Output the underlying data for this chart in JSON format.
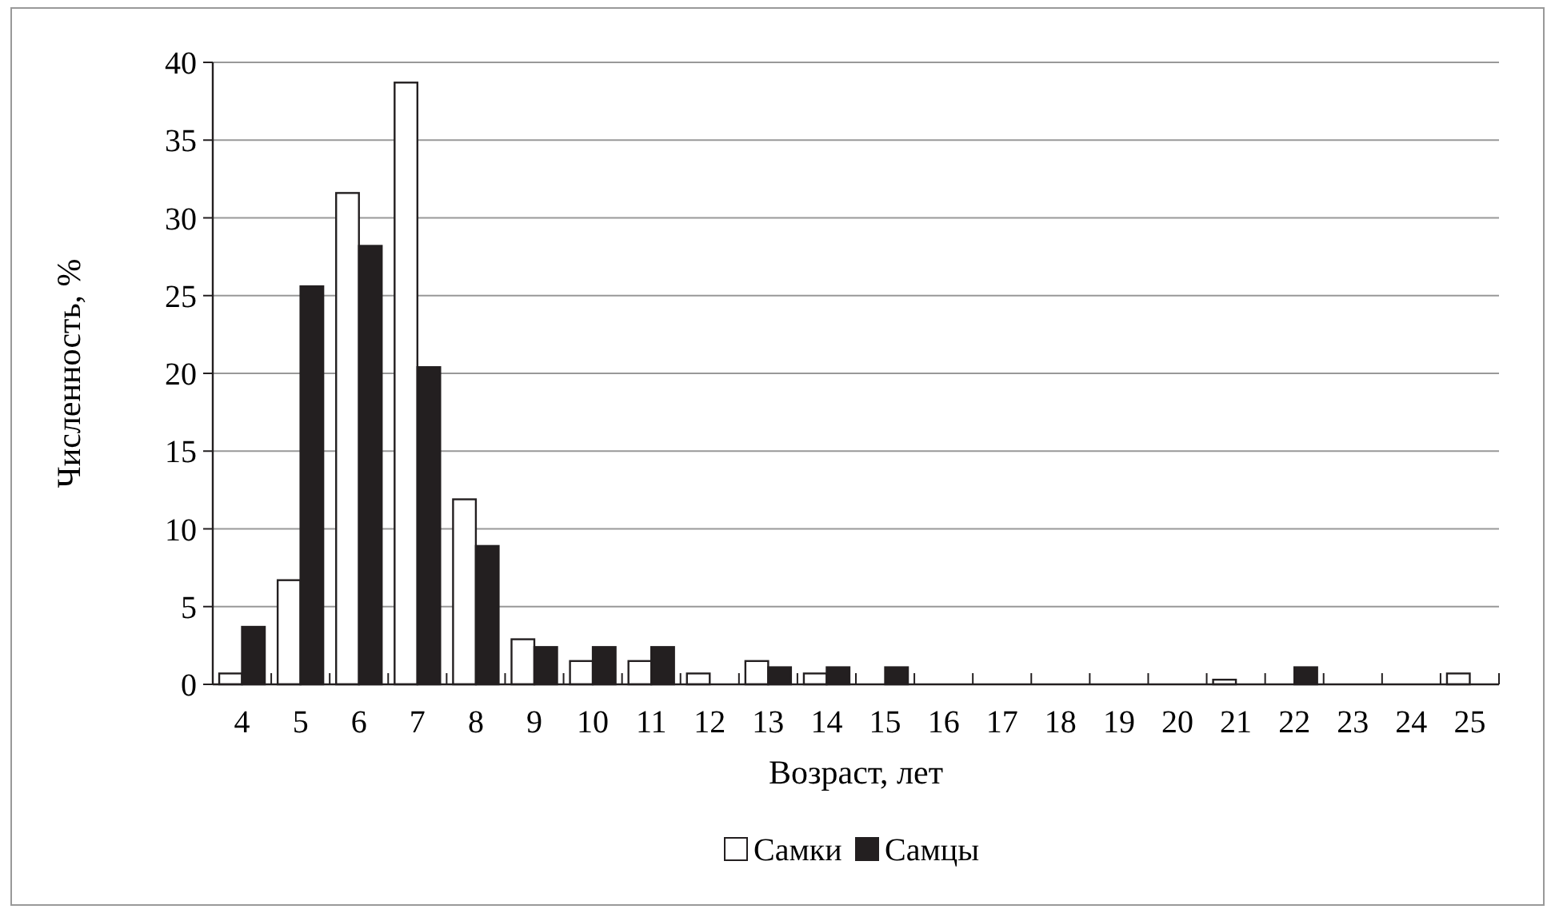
{
  "chart_data": {
    "type": "bar",
    "xlabel": "Возраст, лет",
    "ylabel": "Численность, %",
    "categories": [
      "4",
      "5",
      "6",
      "7",
      "8",
      "9",
      "10",
      "11",
      "12",
      "13",
      "14",
      "15",
      "16",
      "17",
      "18",
      "19",
      "20",
      "21",
      "22",
      "23",
      "24",
      "25"
    ],
    "series": [
      {
        "name": "Самки",
        "color": "#ffffff",
        "values": [
          0.7,
          6.7,
          31.6,
          38.7,
          11.9,
          2.9,
          1.5,
          1.5,
          0.7,
          1.5,
          0.7,
          0,
          0,
          0,
          0,
          0,
          0,
          0.3,
          0,
          0,
          0,
          0.7
        ]
      },
      {
        "name": "Самцы",
        "color": "#231f20",
        "values": [
          3.7,
          25.6,
          28.2,
          20.4,
          8.9,
          2.4,
          2.4,
          2.4,
          0,
          1.1,
          1.1,
          1.1,
          0,
          0,
          0,
          0,
          0,
          0,
          1.1,
          0,
          0,
          0
        ]
      }
    ],
    "ylim": [
      0,
      40
    ],
    "yticks": [
      0,
      5,
      10,
      15,
      20,
      25,
      30,
      35,
      40
    ],
    "grid": "y",
    "legend": "bottom"
  }
}
